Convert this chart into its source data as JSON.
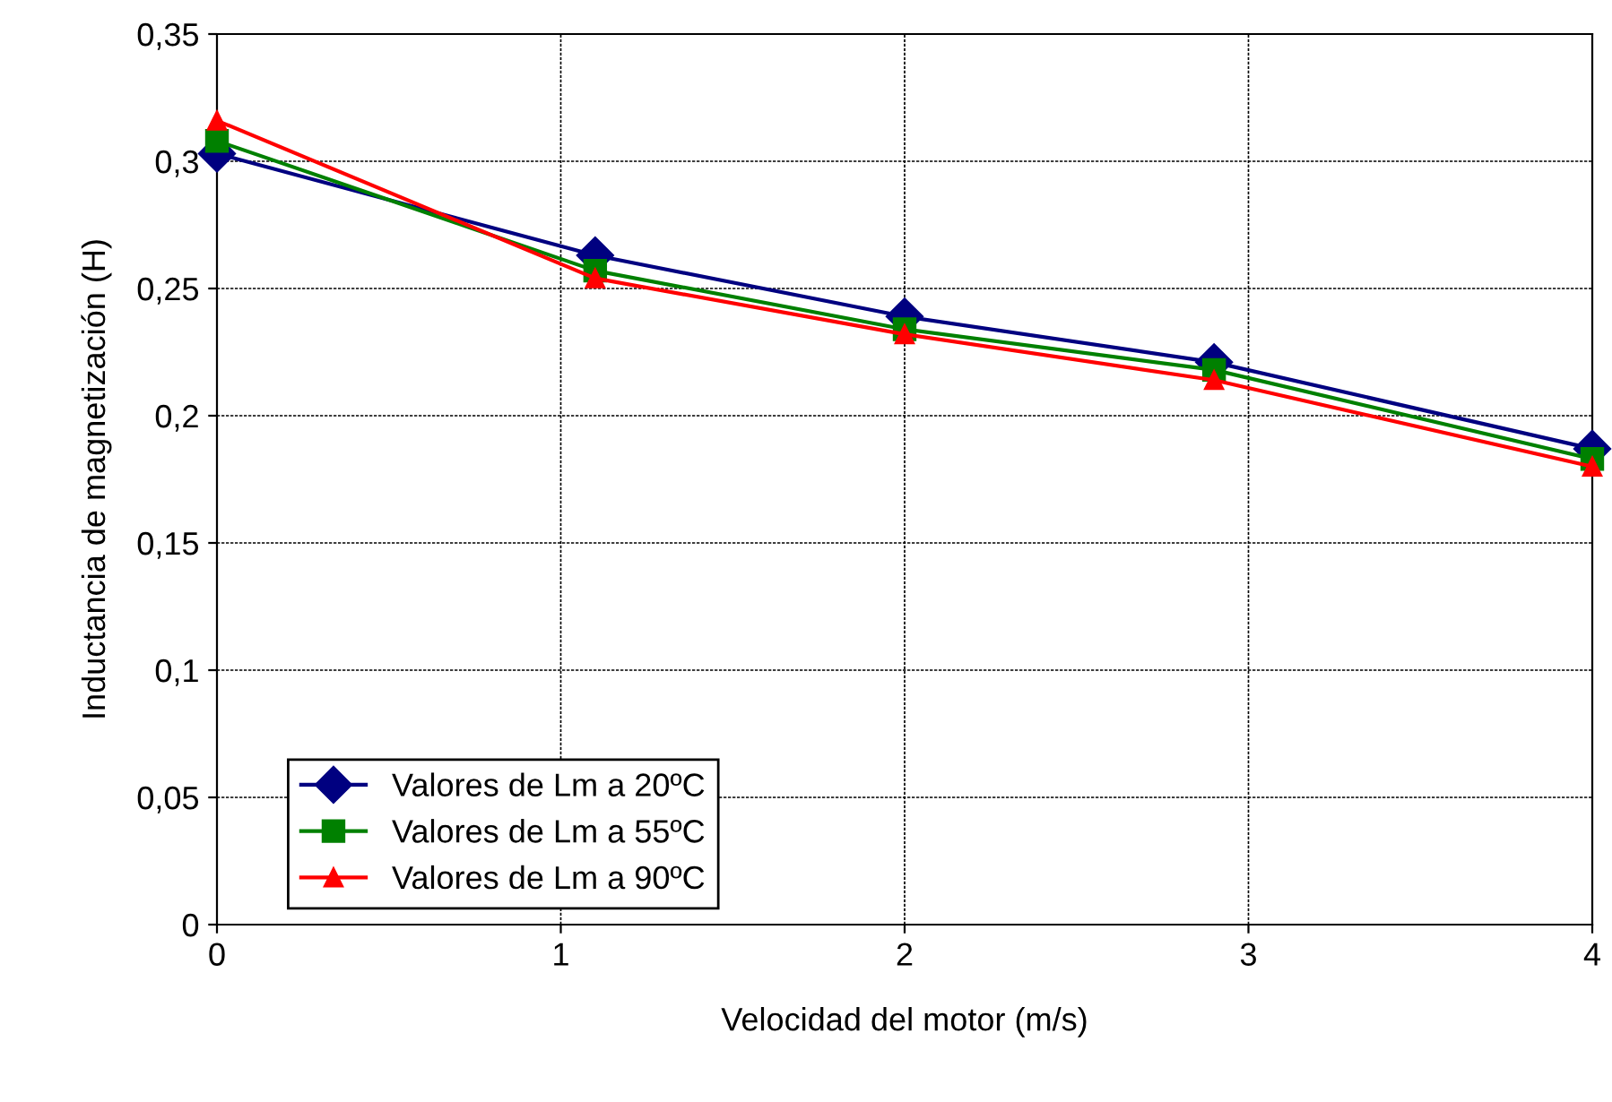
{
  "chart_data": {
    "type": "line",
    "xlabel": "Velocidad del motor (m/s)",
    "ylabel": "Inductancia de magnetización (H)",
    "xlim": [
      0,
      4
    ],
    "xticks": [
      0,
      1,
      2,
      3,
      4
    ],
    "ylim": [
      0,
      0.35
    ],
    "yticks": [
      0,
      {
        "value": 0.05,
        "label": "0,05"
      },
      {
        "value": 0.1,
        "label": "0,1"
      },
      {
        "value": 0.15,
        "label": "0,15"
      },
      {
        "value": 0.2,
        "label": "0,2"
      },
      {
        "value": 0.25,
        "label": "0,25"
      },
      {
        "value": 0.3,
        "label": "0,3"
      },
      {
        "value": 0.35,
        "label": "0,35"
      }
    ],
    "x": [
      0,
      1.1,
      2,
      2.9,
      4
    ],
    "grid": true,
    "legend": "bottom left",
    "line_style": "solid",
    "series": [
      {
        "name": "Valores de Lm a 20ºC",
        "color": "#000080",
        "marker": "diamond",
        "values": [
          0.303,
          0.263,
          0.239,
          0.221,
          0.187
        ]
      },
      {
        "name": "Valores de Lm a 55ºC",
        "color": "#008000",
        "marker": "square",
        "values": [
          0.308,
          0.257,
          0.234,
          0.218,
          0.183
        ]
      },
      {
        "name": "Valores de Lm a 90ºC",
        "color": "#ff0000",
        "marker": "triangle",
        "values": [
          0.316,
          0.254,
          0.232,
          0.214,
          0.18
        ]
      }
    ]
  }
}
